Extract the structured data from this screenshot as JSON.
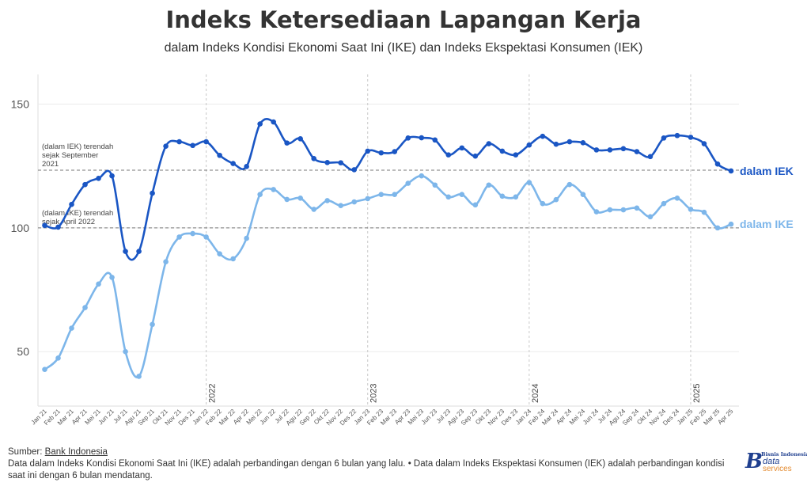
{
  "title": "Indeks Ketersediaan Lapangan Kerja",
  "subtitle": "dalam Indeks Kondisi Ekonomi Saat Ini (IKE) dan Indeks Ekspektasi Konsumen (IEK)",
  "footer": {
    "source_label": "Sumber: ",
    "source_link": "Bank Indonesia",
    "note": "Data dalam Indeks Kondisi Ekonomi Saat Ini (IKE) adalah perbandingan dengan 6 bulan yang lalu. • Data dalam Indeks Ekspektasi Konsumen (IEK) adalah perbandingan kondisi saat ini dengan 6 bulan mendatang."
  },
  "logo": {
    "brand": "Bisnis Indonesia",
    "line1": "data",
    "line2": "services"
  },
  "colors": {
    "iek": "#1a56c4",
    "ike": "#7db6ea",
    "grid": "#ebebeb",
    "ref": "#777777"
  },
  "chart_data": {
    "type": "line",
    "categories": [
      "Jan 21",
      "Feb 21",
      "Mar 21",
      "Apr 21",
      "Mei 21",
      "Jun 21",
      "Jul 21",
      "Agu 21",
      "Sep 21",
      "Okt 21",
      "Nov 21",
      "Des 21",
      "Jan 22",
      "Feb 22",
      "Mar 22",
      "Apr 22",
      "Mei 22",
      "Jun 22",
      "Jul 22",
      "Agu 22",
      "Sep 22",
      "Okt 22",
      "Nov 22",
      "Des 22",
      "Jan 23",
      "Feb 23",
      "Mar 23",
      "Apr 23",
      "Mei 23",
      "Jun 23",
      "Jul 23",
      "Agu 23",
      "Sep 23",
      "Okt 23",
      "Nov 23",
      "Des 23",
      "Jan 24",
      "Feb 24",
      "Mar 24",
      "Apr 24",
      "Mei 24",
      "Jun 24",
      "Jul 24",
      "Agu 24",
      "Sep 24",
      "Okt 24",
      "Nov 24",
      "Des 24",
      "Jan 25",
      "Feb 25",
      "Mar 25",
      "Apr 25"
    ],
    "series": [
      {
        "name": "dalam IEK",
        "values": [
          101,
          100.3,
          109.5,
          117.5,
          120,
          121,
          90.5,
          90.5,
          114,
          133,
          134.8,
          133.3,
          134.8,
          129.3,
          126,
          124.8,
          142,
          142.8,
          134.3,
          136,
          128,
          126.4,
          126.3,
          123.5,
          131,
          130.3,
          130.8,
          136.3,
          136.4,
          135.5,
          129.5,
          132.3,
          129,
          134,
          131,
          129.5,
          133.5,
          137,
          133.8,
          134.8,
          134.4,
          131.5,
          131.5,
          132,
          130.8,
          128.8,
          136.3,
          137.3,
          136.6,
          134,
          125.8,
          123
        ]
      },
      {
        "name": "dalam IKE",
        "values": [
          42.8,
          47.4,
          59.5,
          67.8,
          77.3,
          80,
          50,
          40,
          61,
          86.3,
          96.3,
          97.7,
          96.3,
          89.5,
          87.5,
          95.8,
          113.5,
          115.5,
          111.5,
          112,
          107.5,
          111,
          109,
          110.5,
          111.8,
          113.5,
          113.5,
          118,
          121,
          117.3,
          112.5,
          113.5,
          109.3,
          117.3,
          112.8,
          112.5,
          118.3,
          109.8,
          111.4,
          117.5,
          113.5,
          106.5,
          107.3,
          107.3,
          108,
          104.5,
          109.8,
          112,
          107.5,
          106.3,
          100,
          101.5
        ]
      }
    ],
    "yticks": [
      50,
      100,
      150
    ],
    "ylim": [
      28,
      162
    ],
    "year_labels": [
      {
        "label": "2022",
        "at": "Jan 22"
      },
      {
        "label": "2023",
        "at": "Jan 23"
      },
      {
        "label": "2024",
        "at": "Jan 24"
      },
      {
        "label": "2025",
        "at": "Jan 25"
      }
    ],
    "reference_lines": [
      {
        "value": 123.3,
        "text": [
          "(dalam IEK) terendah",
          "sejak September",
          "2021"
        ]
      },
      {
        "value": 100,
        "text": [
          "(dalam IKE) terendah",
          "sejak April 2022"
        ]
      }
    ],
    "grid": true
  }
}
